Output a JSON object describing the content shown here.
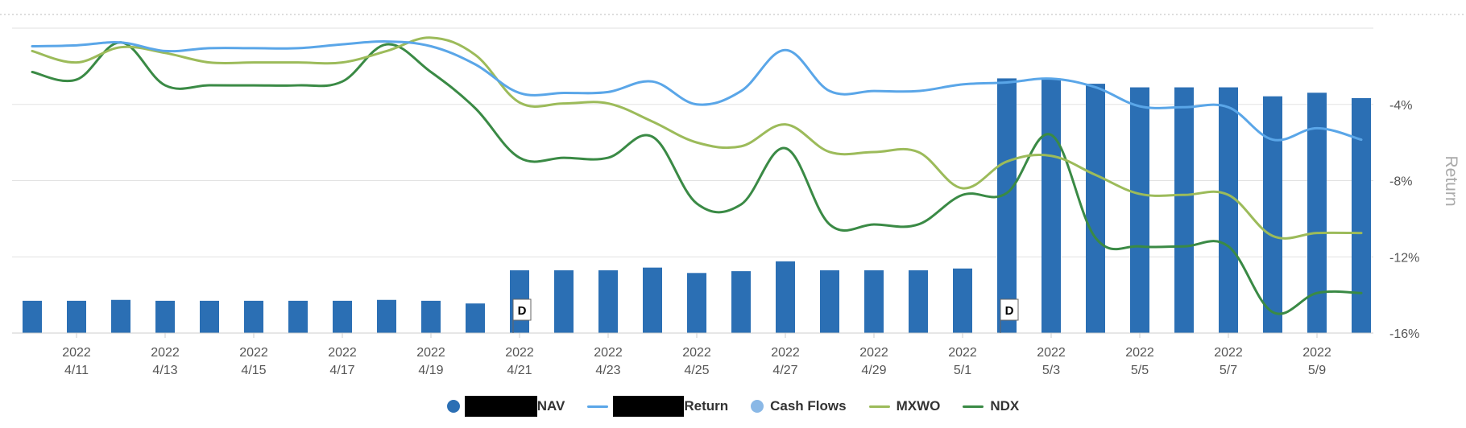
{
  "chart_data": {
    "type": "bar+line",
    "x": [
      "4/10",
      "4/11",
      "4/12",
      "4/13",
      "4/14",
      "4/15",
      "4/16",
      "4/17",
      "4/18",
      "4/19",
      "4/20",
      "4/21",
      "4/22",
      "4/23",
      "4/24",
      "4/25",
      "4/26",
      "4/27",
      "4/28",
      "4/29",
      "4/30",
      "5/1",
      "5/2",
      "5/3",
      "5/4",
      "5/5",
      "5/6",
      "5/7",
      "5/8",
      "5/9",
      "5/10"
    ],
    "tick_labels": [
      {
        "year": "2022",
        "date": "4/11"
      },
      {
        "year": "2022",
        "date": "4/13"
      },
      {
        "year": "2022",
        "date": "4/15"
      },
      {
        "year": "2022",
        "date": "4/17"
      },
      {
        "year": "2022",
        "date": "4/19"
      },
      {
        "year": "2022",
        "date": "4/21"
      },
      {
        "year": "2022",
        "date": "4/23"
      },
      {
        "year": "2022",
        "date": "4/25"
      },
      {
        "year": "2022",
        "date": "4/27"
      },
      {
        "year": "2022",
        "date": "4/29"
      },
      {
        "year": "2022",
        "date": "5/1"
      },
      {
        "year": "2022",
        "date": "5/3"
      },
      {
        "year": "2022",
        "date": "5/5"
      },
      {
        "year": "2022",
        "date": "5/7"
      },
      {
        "year": "2022",
        "date": "5/9"
      }
    ],
    "nav_series": {
      "values": [
        1.8,
        1.8,
        1.85,
        1.8,
        1.8,
        1.8,
        1.8,
        1.8,
        1.85,
        1.8,
        1.65,
        3.5,
        3.5,
        3.5,
        3.65,
        3.35,
        3.45,
        4.0,
        3.5,
        3.5,
        3.5,
        3.6,
        14.2,
        14.2,
        13.9,
        13.7,
        13.7,
        13.7,
        13.2,
        13.4,
        13.1
      ],
      "ylim": [
        0,
        17
      ]
    },
    "return_series": [
      {
        "key": "return",
        "color": "#5aa6e8",
        "values": [
          -0.95,
          -0.9,
          -0.75,
          -1.2,
          -1.05,
          -1.05,
          -1.05,
          -0.85,
          -0.7,
          -0.95,
          -1.9,
          -3.4,
          -3.4,
          -3.35,
          -2.8,
          -4.0,
          -3.3,
          -1.15,
          -3.3,
          -3.3,
          -3.3,
          -2.95,
          -2.85,
          -2.65,
          -3.1,
          -4.1,
          -4.15,
          -4.15,
          -5.85,
          -5.25,
          -5.85
        ]
      },
      {
        "key": "mxwo",
        "color": "#9cbb5a",
        "values": [
          -1.2,
          -1.8,
          -1.0,
          -1.3,
          -1.8,
          -1.8,
          -1.8,
          -1.8,
          -1.2,
          -0.5,
          -1.4,
          -3.9,
          -3.95,
          -3.95,
          -4.9,
          -6.0,
          -6.2,
          -5.05,
          -6.5,
          -6.5,
          -6.5,
          -8.4,
          -7.0,
          -6.7,
          -7.7,
          -8.7,
          -8.75,
          -8.75,
          -10.9,
          -10.75,
          -10.75
        ]
      },
      {
        "key": "ndx",
        "color": "#3a8a45",
        "values": [
          -2.3,
          -2.7,
          -0.75,
          -3.0,
          -3.0,
          -3.0,
          -3.0,
          -2.8,
          -0.85,
          -2.3,
          -4.2,
          -6.8,
          -6.8,
          -6.8,
          -5.7,
          -9.2,
          -9.25,
          -6.3,
          -10.3,
          -10.3,
          -10.3,
          -8.75,
          -8.65,
          -5.6,
          -11.0,
          -11.45,
          -11.45,
          -11.45,
          -14.9,
          -13.9,
          -13.9
        ]
      }
    ],
    "y_right_axis": {
      "title": "Return",
      "ticks": [
        -4,
        -8,
        -12,
        -16
      ],
      "tick_labels": [
        "-4%",
        "-8%",
        "-12%",
        "-16%"
      ],
      "ylim": [
        -16,
        0
      ]
    },
    "flags": [
      {
        "x": "4/21",
        "label": "D"
      },
      {
        "x": "5/2",
        "label": "D"
      }
    ],
    "grid": true
  },
  "legend": {
    "items": [
      {
        "key": "nav",
        "label": "NAV",
        "color": "#2b6fb4",
        "marker": "dot",
        "redacted": true,
        "redact_width": 90
      },
      {
        "key": "return",
        "label": "Return",
        "color": "#5aa6e8",
        "marker": "line",
        "redacted": true,
        "redact_width": 88
      },
      {
        "key": "cashflows",
        "label": "Cash Flows",
        "color": "#8ab8e6",
        "marker": "dot",
        "redacted": false
      },
      {
        "key": "mxwo",
        "label": "MXWO",
        "color": "#9cbb5a",
        "marker": "line",
        "redacted": false
      },
      {
        "key": "ndx",
        "label": "NDX",
        "color": "#3a8a45",
        "marker": "line",
        "redacted": false
      }
    ]
  },
  "colors": {
    "bar": "#2b6fb4",
    "grid": "#e2e2e2",
    "axis_text": "#555555",
    "axis_title": "#aaaaaa"
  }
}
